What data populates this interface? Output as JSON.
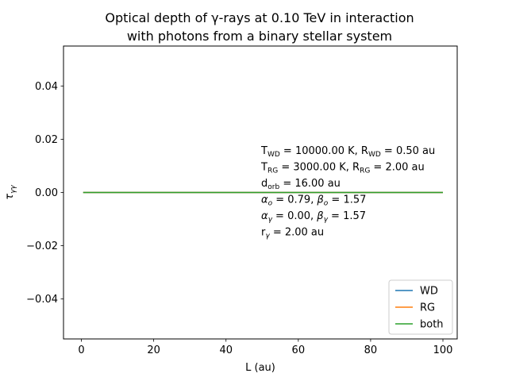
{
  "chart_data": {
    "type": "line",
    "title_lines": [
      "Optical depth of γ-rays at 0.10 TeV in interaction",
      "with photons from a binary stellar system"
    ],
    "xlabel": "L (au)",
    "ylabel": "τ",
    "ylabel_sub": "γγ",
    "xlim": [
      -4.95,
      103.95
    ],
    "ylim": [
      -0.055,
      0.055
    ],
    "xticks": [
      0,
      20,
      40,
      60,
      80,
      100
    ],
    "xtick_labels": [
      "0",
      "20",
      "40",
      "60",
      "80",
      "100"
    ],
    "yticks": [
      -0.04,
      -0.02,
      0.0,
      0.02,
      0.04
    ],
    "ytick_labels": [
      "−0.04",
      "−0.02",
      "0.00",
      "0.02",
      "0.04"
    ],
    "legend_position": "lower-right",
    "series": [
      {
        "name": "WD",
        "color": "#1f77b4",
        "x": [
          0.5,
          100
        ],
        "y": [
          0,
          0
        ]
      },
      {
        "name": "RG",
        "color": "#ff7f0e",
        "x": [
          0.5,
          100
        ],
        "y": [
          0,
          0
        ]
      },
      {
        "name": "both",
        "color": "#2ca02c",
        "x": [
          0.5,
          100
        ],
        "y": [
          0,
          0
        ]
      }
    ],
    "annotations": [
      [
        {
          "t": "T"
        },
        {
          "t": "WD",
          "sub": true
        },
        {
          "t": " = 10000.00 K, R"
        },
        {
          "t": "WD",
          "sub": true
        },
        {
          "t": " = 0.50 au"
        }
      ],
      [
        {
          "t": "T"
        },
        {
          "t": "RG",
          "sub": true
        },
        {
          "t": " = 3000.00 K, R"
        },
        {
          "t": "RG",
          "sub": true
        },
        {
          "t": " =  2.00 au"
        }
      ],
      [
        {
          "t": "d"
        },
        {
          "t": "orb",
          "sub": true
        },
        {
          "t": " = 16.00 au"
        }
      ],
      [
        {
          "t": "α",
          "it": true
        },
        {
          "t": "o",
          "sub": true,
          "it": true
        },
        {
          "t": " = 0.79, "
        },
        {
          "t": "β",
          "it": true
        },
        {
          "t": "o",
          "sub": true,
          "it": true
        },
        {
          "t": " = 1.57"
        }
      ],
      [
        {
          "t": "α",
          "it": true
        },
        {
          "t": "γ",
          "sub": true,
          "it": true
        },
        {
          "t": " = 0.00, "
        },
        {
          "t": "β",
          "it": true
        },
        {
          "t": "γ",
          "sub": true,
          "it": true
        },
        {
          "t": " = 1.57"
        }
      ],
      [
        {
          "t": "r"
        },
        {
          "t": "γ",
          "sub": true,
          "it": true
        },
        {
          "t": " = 2.00 au"
        }
      ]
    ]
  }
}
